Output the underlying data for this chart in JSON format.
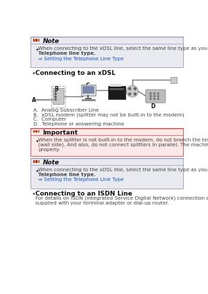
{
  "bg_color": "#ffffff",
  "note_bg": "#e8eaf0",
  "note_border": "#9999bb",
  "important_bg": "#fde8e8",
  "important_border": "#cc4444",
  "blue_link": "#1155cc",
  "black": "#111111",
  "gray_text": "#444444",
  "dark_gray": "#444444",
  "red_icon": "#cc2200",
  "orange_icon": "#dd6600",
  "section_bullet": "#555555",
  "note1_line1": "When connecting to the xDSL line, select the same line type as you are subscribing to in",
  "note1_line2": "Telephone line type.",
  "note1_link": "⇒ Setting the Telephone Line Type",
  "section1_title": "Connecting to an xDSL",
  "labels_A_D": [
    "A.  Analog Subscriber Line",
    "B.  xDSL modem (splitter may not be built-in to the modem)",
    "C.  Computer",
    "D.  Telephone or answering machine"
  ],
  "important_title": "Important",
  "important_line1": "When the splitter is not built-in to the modem, do not branch the telephone line before the splitter",
  "important_line2": "(wall side). And also, do not connect splitters in parallel. The machine may not be able to operate",
  "important_line3": "properly.",
  "note2_line1": "When connecting to the xDSL line, select the same line type as you are subscribing to in",
  "note2_line2": "Telephone line type.",
  "note2_link": "⇒ Setting the Telephone Line Type",
  "section2_title": "Connecting to an ISDN Line",
  "section2_line1": "For details on ISDN (Integrated Service Digital Network) connection and settings, refer to the manuals",
  "section2_line2": "supplied with your terminal adapter or dial-up router."
}
